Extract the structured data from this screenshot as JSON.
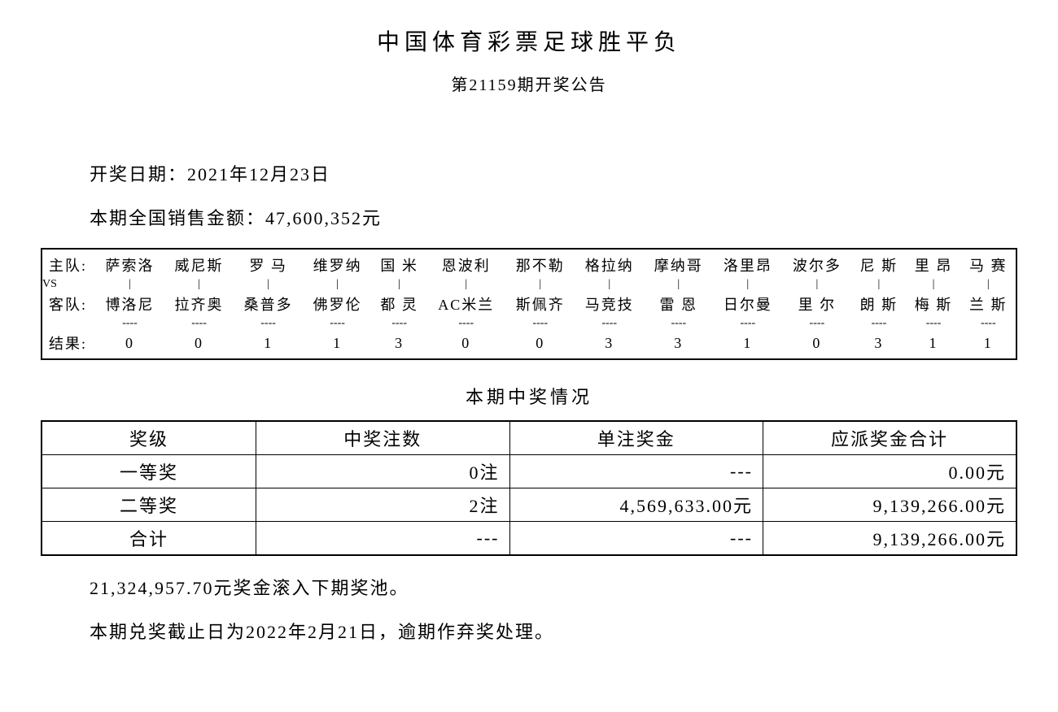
{
  "title": "中国体育彩票足球胜平负",
  "issue_line": "第21159期开奖公告",
  "draw_date_label": "开奖日期：",
  "draw_date_value": "2021年12月23日",
  "sales_label": "本期全国销售金额：",
  "sales_value": "47,600,352元",
  "row_labels": {
    "home": "主队:",
    "vs": "VS",
    "away": "客队:",
    "result": "结果:"
  },
  "vs_mark": "|",
  "dash_mark": "----",
  "matches": {
    "home": [
      "萨索洛",
      "威尼斯",
      "罗 马",
      "维罗纳",
      "国 米",
      "恩波利",
      "那不勒",
      "格拉纳",
      "摩纳哥",
      "洛里昂",
      "波尔多",
      "尼 斯",
      "里 昂",
      "马 赛"
    ],
    "away": [
      "博洛尼",
      "拉齐奥",
      "桑普多",
      "佛罗伦",
      "都 灵",
      "AC米兰",
      "斯佩齐",
      "马竞技",
      "雷 恩",
      "日尔曼",
      "里 尔",
      "朗 斯",
      "梅 斯",
      "兰 斯"
    ],
    "result": [
      "0",
      "0",
      "1",
      "1",
      "3",
      "0",
      "0",
      "3",
      "3",
      "1",
      "0",
      "3",
      "1",
      "1"
    ]
  },
  "prize_section_title": "本期中奖情况",
  "prize_table": {
    "headers": [
      "奖级",
      "中奖注数",
      "单注奖金",
      "应派奖金合计"
    ],
    "rows": [
      {
        "level": "一等奖",
        "count": "0注",
        "unit": "---",
        "total": "0.00元"
      },
      {
        "level": "二等奖",
        "count": "2注",
        "unit": "4,569,633.00元",
        "total": "9,139,266.00元"
      },
      {
        "level": "合计",
        "count": "---",
        "unit": "---",
        "total": "9,139,266.00元"
      }
    ]
  },
  "rollover_line": "21,324,957.70元奖金滚入下期奖池。",
  "deadline_line": "本期兑奖截止日为2022年2月21日，逾期作弃奖处理。",
  "styles": {
    "text_color": "#000000",
    "background_color": "#ffffff",
    "border_color": "#000000",
    "title_fontsize": 28,
    "subtitle_fontsize": 20,
    "body_fontsize": 22,
    "match_fontsize": 18,
    "font_family": "SimSun"
  }
}
